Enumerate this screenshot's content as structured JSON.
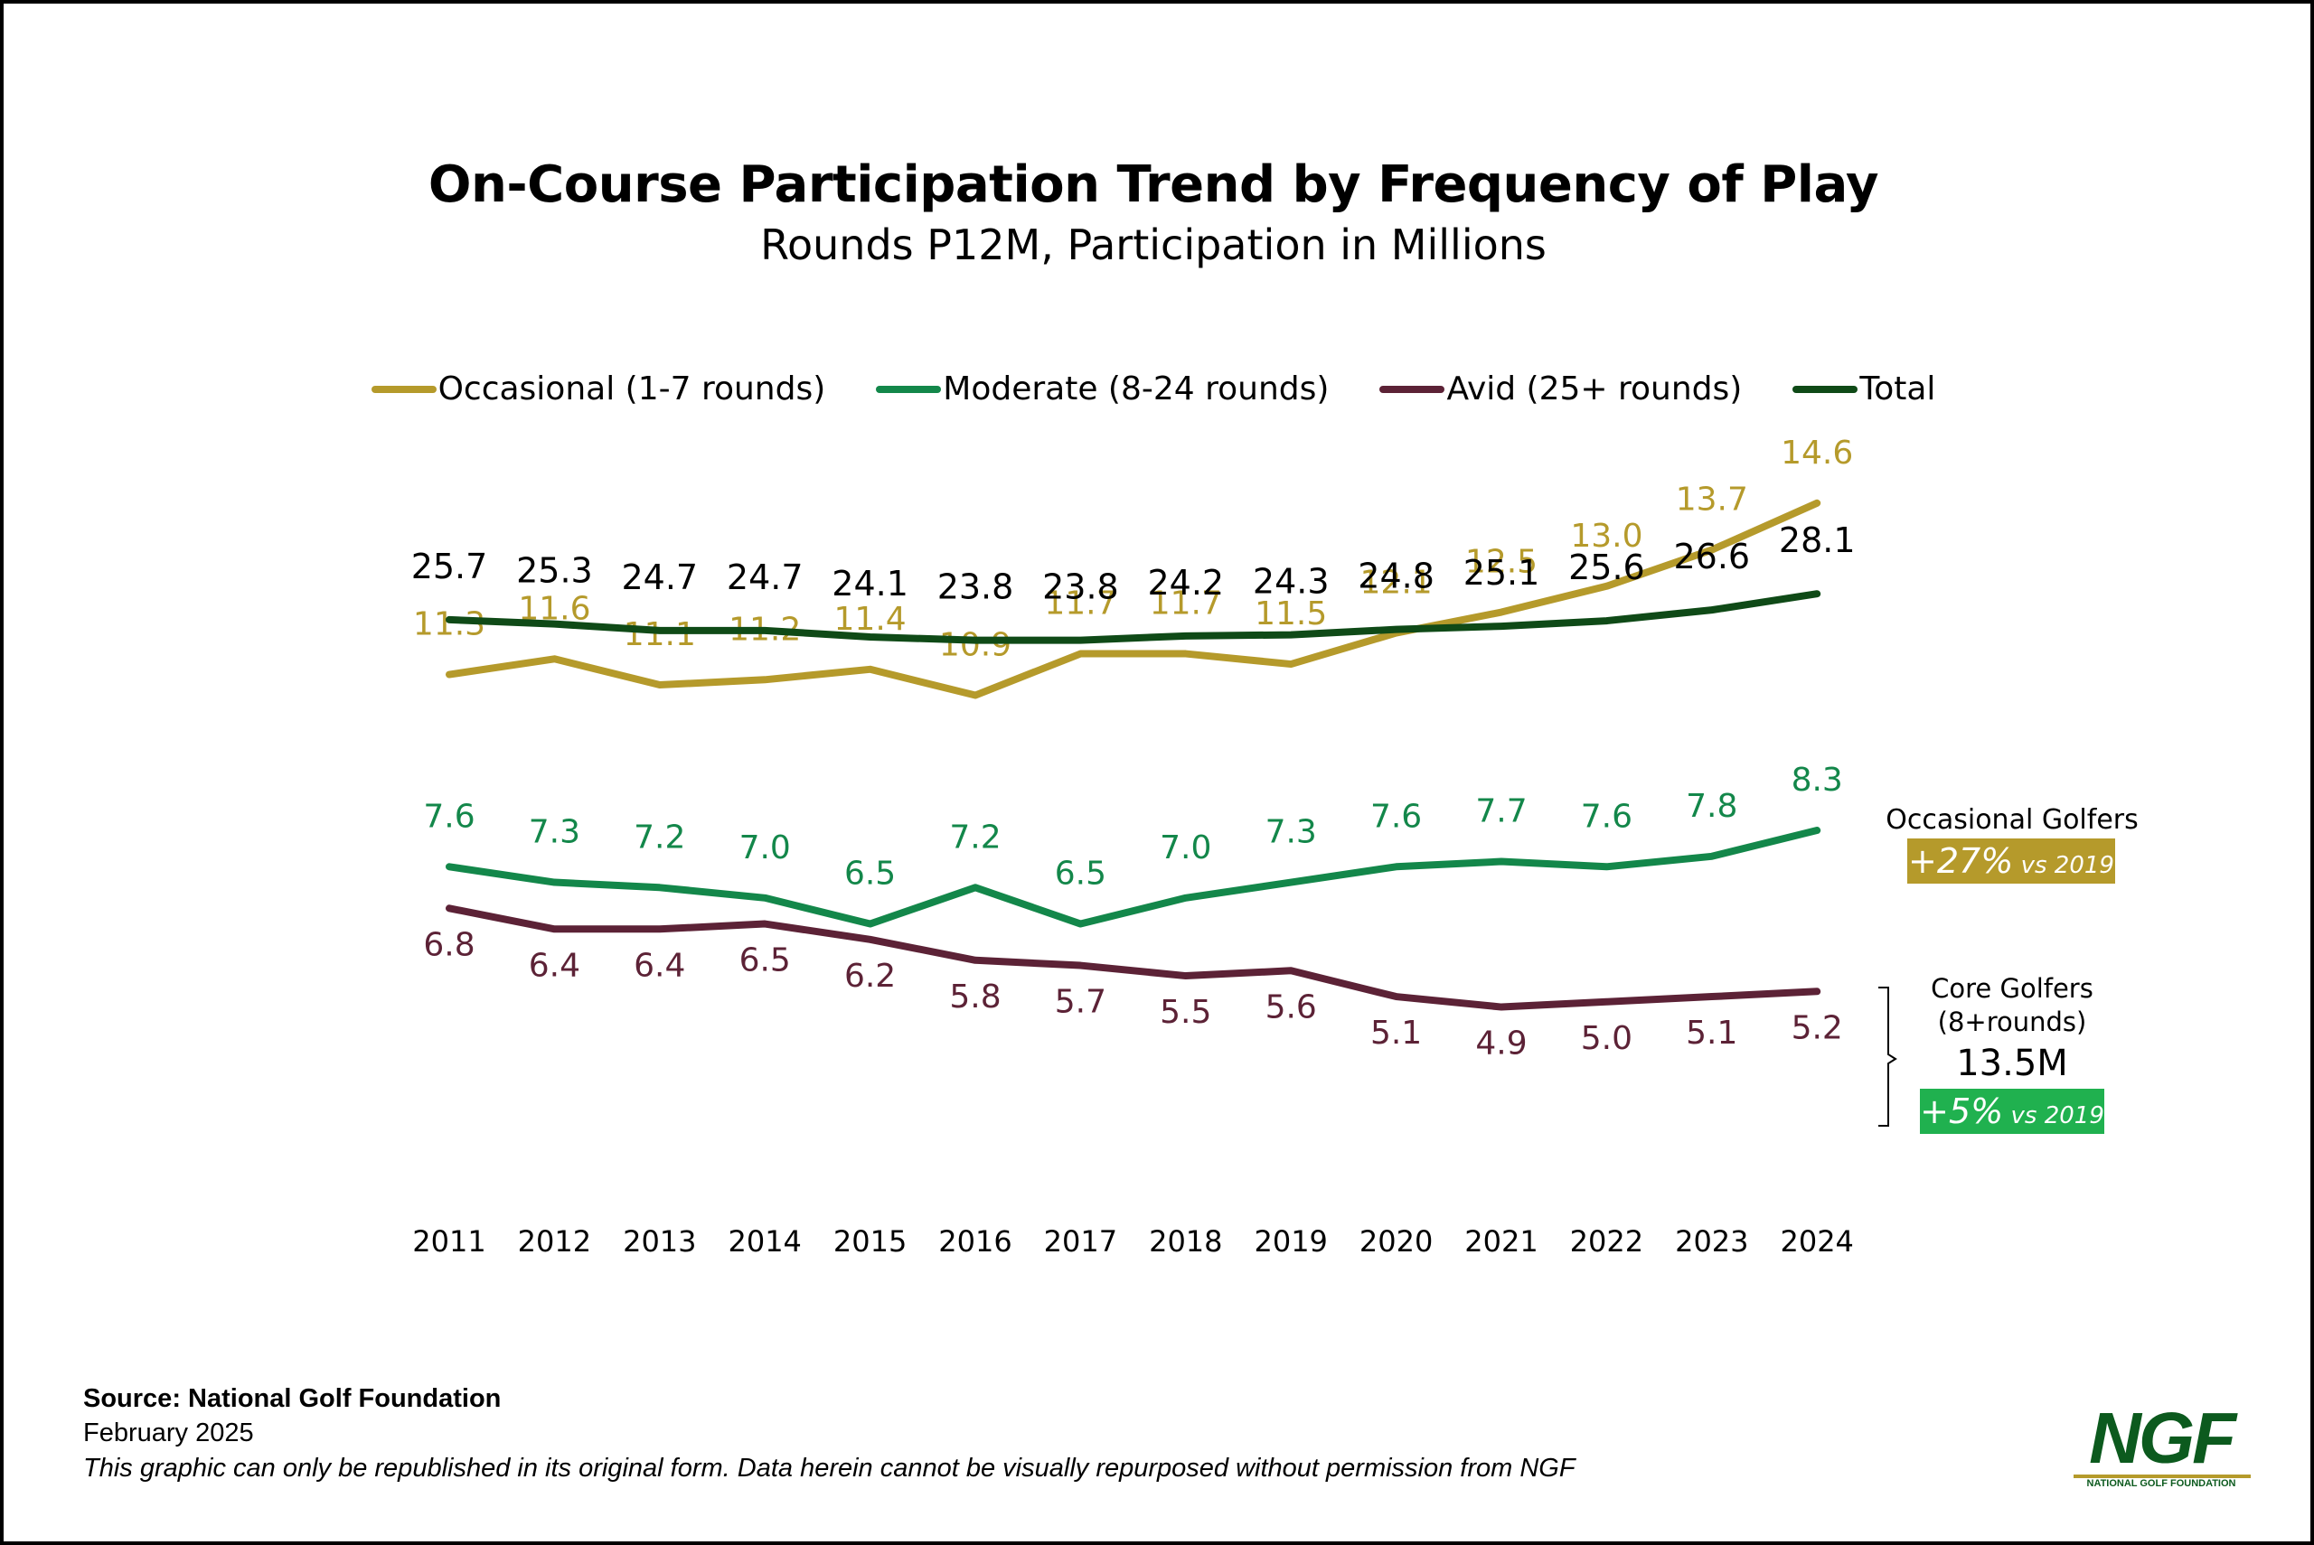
{
  "chart_data": {
    "type": "line",
    "title": "On-Course Participation Trend by Frequency of Play",
    "subtitle": "Rounds P12M, Participation in Millions",
    "categories": [
      "2011",
      "2012",
      "2013",
      "2014",
      "2015",
      "2016",
      "2017",
      "2018",
      "2019",
      "2020",
      "2021",
      "2022",
      "2023",
      "2024"
    ],
    "series": [
      {
        "name": "Occasional (1-7 rounds)",
        "color": "#b59a2b",
        "values": [
          11.3,
          11.6,
          11.1,
          11.2,
          11.4,
          10.9,
          11.7,
          11.7,
          11.5,
          12.1,
          12.5,
          13.0,
          13.7,
          14.6
        ]
      },
      {
        "name": "Moderate (8-24 rounds)",
        "color": "#13874a",
        "values": [
          7.6,
          7.3,
          7.2,
          7.0,
          6.5,
          7.2,
          6.5,
          7.0,
          7.3,
          7.6,
          7.7,
          7.6,
          7.8,
          8.3
        ]
      },
      {
        "name": "Avid (25+ rounds)",
        "color": "#5c2236",
        "values": [
          6.8,
          6.4,
          6.4,
          6.5,
          6.2,
          5.8,
          5.7,
          5.5,
          5.6,
          5.1,
          4.9,
          5.0,
          5.1,
          5.2
        ]
      },
      {
        "name": "Total",
        "color": "#0f4a17",
        "values": [
          25.7,
          25.3,
          24.7,
          24.7,
          24.1,
          23.8,
          23.8,
          24.2,
          24.3,
          24.8,
          25.1,
          25.6,
          26.6,
          28.1
        ]
      }
    ],
    "value_labels": {
      "Occasional (1-7 rounds)": [
        "11.3",
        "11.6",
        "11.1",
        "11.2",
        "11.4",
        "10.9",
        "11.7",
        "11.7",
        "11.5",
        "12.1",
        "12.5",
        "13.0",
        "13.7",
        "14.6"
      ],
      "Moderate (8-24 rounds)": [
        "7.6",
        "7.3",
        "7.2",
        "7.0",
        "6.5",
        "7.2",
        "6.5",
        "7.0",
        "7.3",
        "7.6",
        "7.7",
        "7.6",
        "7.8",
        "8.3"
      ],
      "Avid (25+ rounds)": [
        "6.8",
        "6.4",
        "6.4",
        "6.5",
        "6.2",
        "5.8",
        "5.7",
        "5.5",
        "5.6",
        "5.1",
        "4.9",
        "5.0",
        "5.1",
        "5.2"
      ],
      "Total": [
        "25.7",
        "25.3",
        "24.7",
        "24.7",
        "24.1",
        "23.8",
        "23.8",
        "24.2",
        "24.3",
        "24.8",
        "25.1",
        "25.6",
        "26.6",
        "28.1"
      ]
    },
    "legend_position": "top",
    "grid": false,
    "annotations": {
      "occasional_title": "Occasional Golfers",
      "occasional_change": "+27%",
      "occasional_change_suffix": "vs 2019",
      "occasional_color": "#b59a2b",
      "core_title_line1": "Core Golfers",
      "core_title_line2": "(8+rounds)",
      "core_value": "13.5M",
      "core_change": "+5%",
      "core_change_suffix": "vs 2019",
      "core_color": "#20b14f"
    }
  },
  "footer": {
    "source": "Source: National Golf Foundation",
    "date": "February 2025",
    "note": "This graphic can only be republished in its original form. Data herein cannot be visually repurposed without permission from NGF"
  },
  "logo": {
    "text": "NGF",
    "subtext": "NATIONAL GOLF FOUNDATION",
    "color": "#0c5a1e",
    "accent": "#b59a2b"
  }
}
